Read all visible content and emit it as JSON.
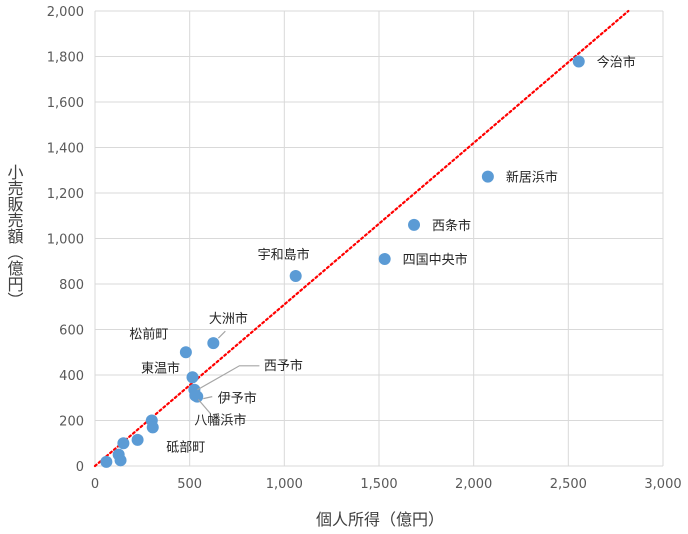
{
  "chart_data": {
    "type": "scatter",
    "xlabel": "個人所得（億円）",
    "ylabel": "小売販売額（億円）",
    "xlim": [
      0,
      3000
    ],
    "ylim": [
      0,
      2000
    ],
    "x_ticks": [
      "0",
      "500",
      "1,000",
      "1,500",
      "2,000",
      "2,500",
      "3,000"
    ],
    "y_ticks": [
      "0",
      "200",
      "400",
      "600",
      "800",
      "1,000",
      "1,200",
      "1,400",
      "1,600",
      "1,800",
      "2,000"
    ],
    "grid": true,
    "legend": "none",
    "marker_color": "#5B9BD5",
    "trendline": {
      "style": "dotted",
      "color": "#FF0000",
      "kind": "linear",
      "through_origin": true,
      "slope": 0.71
    },
    "points": [
      {
        "name": "今治市",
        "x": 2555,
        "y": 1778
      },
      {
        "name": "新居浜市",
        "x": 2075,
        "y": 1272
      },
      {
        "name": "西条市",
        "x": 1685,
        "y": 1060
      },
      {
        "name": "四国中央市",
        "x": 1530,
        "y": 910
      },
      {
        "name": "宇和島市",
        "x": 1060,
        "y": 835
      },
      {
        "name": "大洲市",
        "x": 625,
        "y": 540
      },
      {
        "name": "松前町",
        "x": 480,
        "y": 500
      },
      {
        "name": "東温市",
        "x": 515,
        "y": 390
      },
      {
        "name": "西予市",
        "x": 525,
        "y": 335
      },
      {
        "name": "伊予市",
        "x": 540,
        "y": 305
      },
      {
        "name": "八幡浜市",
        "x": 530,
        "y": 310
      },
      {
        "name": "",
        "x": 300,
        "y": 200
      },
      {
        "name": "砥部町",
        "x": 305,
        "y": 170
      },
      {
        "name": "",
        "x": 225,
        "y": 115
      },
      {
        "name": "",
        "x": 150,
        "y": 100
      },
      {
        "name": "",
        "x": 125,
        "y": 50
      },
      {
        "name": "",
        "x": 135,
        "y": 25
      },
      {
        "name": "",
        "x": 60,
        "y": 18
      }
    ]
  }
}
